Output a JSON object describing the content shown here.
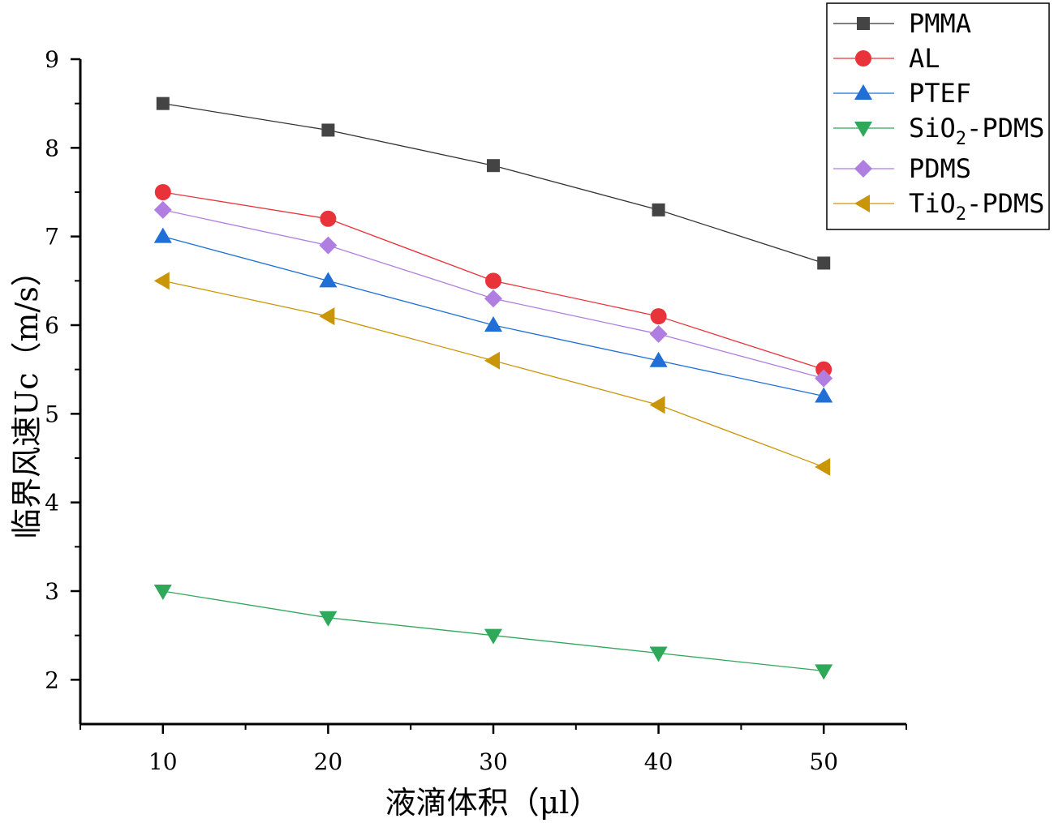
{
  "chart_data": {
    "type": "line",
    "xlabel": "液滴体积（μl）",
    "ylabel": "临界风速Uc（m/s）",
    "xlim": [
      5,
      55
    ],
    "ylim": [
      1.5,
      9
    ],
    "xticks": [
      10,
      20,
      30,
      40,
      50
    ],
    "yticks": [
      2,
      3,
      4,
      5,
      6,
      7,
      8,
      9
    ],
    "x": [
      10,
      20,
      30,
      40,
      50
    ],
    "grid": false,
    "legend_position": "top-right",
    "series": [
      {
        "name": "PMMA",
        "name_main": "PMMA",
        "name_sub": "",
        "name_tail": "",
        "values": [
          8.5,
          8.2,
          7.8,
          7.3,
          6.7
        ],
        "color": "#444444",
        "line_color": "#333333",
        "marker": "square"
      },
      {
        "name": "AL",
        "name_main": "AL",
        "name_sub": "",
        "name_tail": "",
        "values": [
          7.5,
          7.2,
          6.5,
          6.1,
          5.5
        ],
        "color": "#e8333a",
        "line_color": "#e8333a",
        "marker": "circle"
      },
      {
        "name": "PTEF",
        "name_main": "PTEF",
        "name_sub": "",
        "name_tail": "",
        "values": [
          7.0,
          6.5,
          6.0,
          5.6,
          5.2
        ],
        "color": "#1f6fd6",
        "line_color": "#1f6fd6",
        "marker": "triangle-up"
      },
      {
        "name": "SiO2-PDMS",
        "name_main": "SiO",
        "name_sub": "2",
        "name_tail": "-PDMS",
        "values": [
          3.0,
          2.7,
          2.5,
          2.3,
          2.1
        ],
        "color": "#2fa85a",
        "line_color": "#2fa85a",
        "marker": "triangle-down"
      },
      {
        "name": "PDMS",
        "name_main": "PDMS",
        "name_sub": "",
        "name_tail": "",
        "values": [
          7.3,
          6.9,
          6.3,
          5.9,
          5.4
        ],
        "color": "#b07ee0",
        "line_color": "#b07ee0",
        "marker": "diamond"
      },
      {
        "name": "TiO2-PDMS",
        "name_main": "TiO",
        "name_sub": "2",
        "name_tail": "-PDMS",
        "values": [
          6.5,
          6.1,
          5.6,
          5.1,
          4.4
        ],
        "color": "#c9960a",
        "line_color": "#c9960a",
        "marker": "triangle-left"
      }
    ]
  }
}
